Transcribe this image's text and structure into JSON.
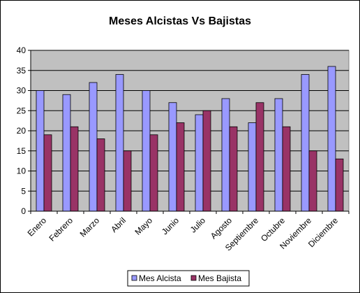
{
  "chart_data": {
    "type": "bar",
    "title": "Meses Alcistas Vs Bajistas",
    "xlabel": "",
    "ylabel": "",
    "categories": [
      "Enero",
      "Febrero",
      "Marzo",
      "Abril",
      "Mayo",
      "Junio",
      "Julio",
      "Agosto",
      "Septiembre",
      "Octubre",
      "Noviembre",
      "Diciembre"
    ],
    "series": [
      {
        "name": "Mes Alcista",
        "color": "#9999FF",
        "values": [
          30,
          29,
          32,
          34,
          30,
          27,
          24,
          28,
          22,
          28,
          34,
          36
        ]
      },
      {
        "name": "Mes Bajista",
        "color": "#993366",
        "values": [
          19,
          21,
          18,
          15,
          19,
          22,
          25,
          21,
          27,
          21,
          15,
          13
        ]
      }
    ],
    "ylim": [
      0,
      40
    ],
    "yticks": [
      0,
      5,
      10,
      15,
      20,
      25,
      30,
      35,
      40
    ],
    "grid": true,
    "plot_background": "#C0C0C0",
    "legend_position": "bottom"
  }
}
